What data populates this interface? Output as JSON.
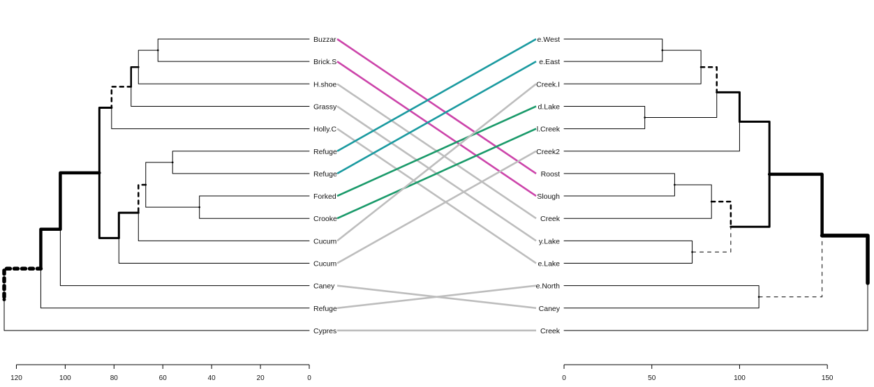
{
  "left_labels": [
    "Buzzar",
    "Brick.S",
    "H.shoe",
    "Grassy",
    "Holly.C",
    "Refuge",
    "Refuge",
    "Forked",
    "Crooke",
    "Cucum",
    "Cucum",
    "Caney",
    "Refuge",
    "Cypres"
  ],
  "right_labels": [
    "e.West",
    "e.East",
    "Creek.I",
    "d.Lake",
    "l.Creek",
    "Creek2",
    "Roost",
    "Slough",
    "Creek",
    "y.Lake",
    "e.Lake",
    "e.North",
    "Caney",
    "Creek"
  ],
  "left_axis": {
    "ticks": [
      "120",
      "100",
      "80",
      "60",
      "40",
      "20",
      "0"
    ]
  },
  "right_axis": {
    "ticks": [
      "0",
      "50",
      "100",
      "150"
    ]
  },
  "connections": [
    {
      "from": 0,
      "to": 6,
      "color": "#cc44aa"
    },
    {
      "from": 1,
      "to": 7,
      "color": "#cc44aa"
    },
    {
      "from": 2,
      "to": 8,
      "color": "#bdbdbd"
    },
    {
      "from": 3,
      "to": 9,
      "color": "#bdbdbd"
    },
    {
      "from": 4,
      "to": 10,
      "color": "#bdbdbd"
    },
    {
      "from": 5,
      "to": 0,
      "color": "#1a9aa0"
    },
    {
      "from": 6,
      "to": 1,
      "color": "#1a9aa0"
    },
    {
      "from": 7,
      "to": 3,
      "color": "#1a9a6a"
    },
    {
      "from": 8,
      "to": 4,
      "color": "#1a9a6a"
    },
    {
      "from": 9,
      "to": 2,
      "color": "#bdbdbd"
    },
    {
      "from": 10,
      "to": 5,
      "color": "#bdbdbd"
    },
    {
      "from": 11,
      "to": 12,
      "color": "#bdbdbd"
    },
    {
      "from": 12,
      "to": 11,
      "color": "#bdbdbd"
    },
    {
      "from": 13,
      "to": 13,
      "color": "#bdbdbd"
    }
  ],
  "left_tree": {
    "h": 125,
    "c": [
      {
        "h": 110,
        "c": [
          {
            "h": 102,
            "c": [
              {
                "h": 86,
                "c": [
                  {
                    "h": 81,
                    "c": [
                      {
                        "h": 73,
                        "c": [
                          {
                            "h": 70,
                            "c": [
                              {
                                "h": 62,
                                "c": [
                                  {
                                    "leaf": 0
                                  },
                                  {
                                    "leaf": 1
                                  }
                                ]
                              },
                              {
                                "leaf": 2
                              }
                            ]
                          },
                          {
                            "leaf": 3
                          }
                        ]
                      },
                      {
                        "leaf": 4
                      }
                    ]
                  },
                  {
                    "h": 78,
                    "c": [
                      {
                        "h": 70,
                        "c": [
                          {
                            "h": 67,
                            "c": [
                              {
                                "h": 56,
                                "c": [
                                  {
                                    "leaf": 5
                                  },
                                  {
                                    "leaf": 6
                                  }
                                ]
                              },
                              {
                                "h": 45,
                                "c": [
                                  {
                                    "leaf": 7
                                  },
                                  {
                                    "leaf": 8
                                  }
                                ]
                              }
                            ]
                          },
                          {
                            "leaf": 9
                          }
                        ]
                      },
                      {
                        "leaf": 10
                      }
                    ]
                  }
                ]
              },
              {
                "leaf": 11
              }
            ]
          },
          {
            "leaf": 12
          }
        ]
      },
      {
        "leaf": 13
      }
    ]
  },
  "right_tree": {
    "h": 173,
    "c": [
      {
        "h": 147,
        "c": [
          {
            "h": 117,
            "c": [
              {
                "h": 100,
                "c": [
                  {
                    "h": 87,
                    "c": [
                      {
                        "h": 78,
                        "c": [
                          {
                            "h": 56,
                            "c": [
                              {
                                "leaf": 0
                              },
                              {
                                "leaf": 1
                              }
                            ]
                          },
                          {
                            "leaf": 2
                          }
                        ]
                      },
                      {
                        "h": 46,
                        "c": [
                          {
                            "leaf": 3
                          },
                          {
                            "leaf": 4
                          }
                        ]
                      }
                    ]
                  },
                  {
                    "leaf": 5
                  }
                ]
              },
              {
                "h": 95,
                "c": [
                  {
                    "h": 84,
                    "c": [
                      {
                        "h": 63,
                        "c": [
                          {
                            "leaf": 6
                          },
                          {
                            "leaf": 7
                          }
                        ]
                      },
                      {
                        "leaf": 8
                      }
                    ]
                  },
                  {
                    "h": 73,
                    "c": [
                      {
                        "leaf": 9
                      },
                      {
                        "leaf": 10
                      }
                    ]
                  }
                ]
              }
            ]
          },
          {
            "h": 111,
            "c": [
              {
                "leaf": 11
              },
              {
                "leaf": 12
              }
            ]
          }
        ]
      },
      {
        "leaf": 13
      }
    ]
  }
}
